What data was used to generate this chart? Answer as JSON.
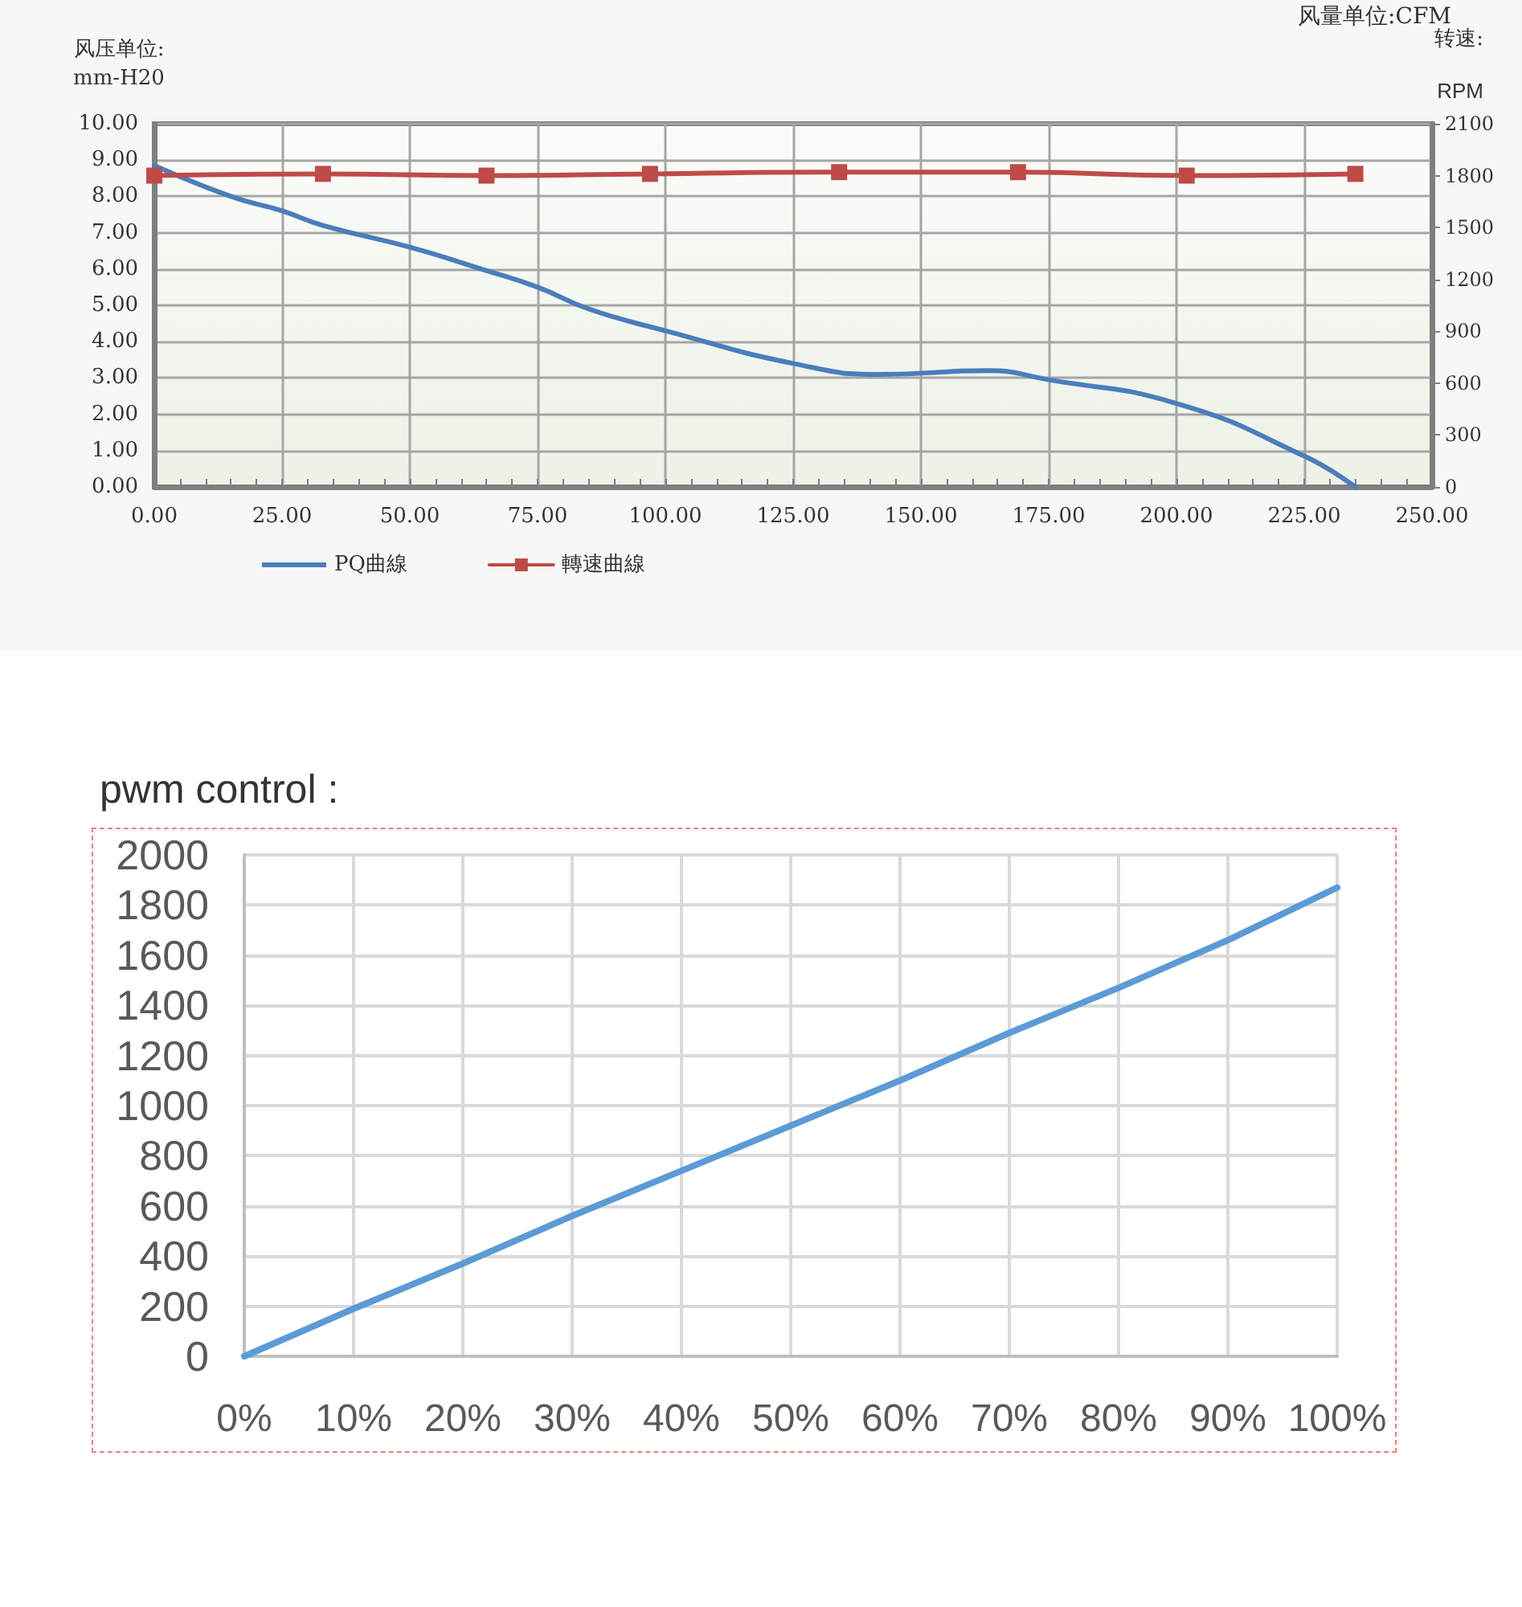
{
  "chart_data": [
    {
      "type": "line",
      "xlabel": "风量单位:CFM",
      "ylabel": "风压单位:\nmm-H20",
      "y2label": "转速:\nRPM",
      "xlim": [
        0,
        250
      ],
      "xticks": [
        {
          "value": 0,
          "label": "0.00"
        },
        {
          "value": 25,
          "label": "25.00"
        },
        {
          "value": 50,
          "label": "50.00"
        },
        {
          "value": 75,
          "label": "75.00"
        },
        {
          "value": 100,
          "label": "100.00"
        },
        {
          "value": 125,
          "label": "125.00"
        },
        {
          "value": 150,
          "label": "150.00"
        },
        {
          "value": 175,
          "label": "175.00"
        },
        {
          "value": 200,
          "label": "200.00"
        },
        {
          "value": 225,
          "label": "225.00"
        },
        {
          "value": 250,
          "label": "250.00"
        }
      ],
      "ylim": [
        0,
        10
      ],
      "yticks": [
        {
          "value": 0,
          "label": "0.00"
        },
        {
          "value": 1,
          "label": "1.00"
        },
        {
          "value": 2,
          "label": "2.00"
        },
        {
          "value": 3,
          "label": "3.00"
        },
        {
          "value": 4,
          "label": "4.00"
        },
        {
          "value": 5,
          "label": "5.00"
        },
        {
          "value": 6,
          "label": "6.00"
        },
        {
          "value": 7,
          "label": "7.00"
        },
        {
          "value": 8,
          "label": "8.00"
        },
        {
          "value": 9,
          "label": "9.00"
        },
        {
          "value": 10,
          "label": "10.00"
        }
      ],
      "y2lim": [
        0,
        2100
      ],
      "y2ticks": [
        0,
        300,
        600,
        900,
        1200,
        1500,
        1800,
        2100
      ],
      "grid": true,
      "legend": "bottom",
      "series": [
        {
          "name": "PQ曲線",
          "color": "#4a7ebb",
          "marker": "none",
          "x": [
            0,
            15,
            25,
            33,
            50,
            64,
            75,
            85,
            100,
            125,
            142,
            163,
            175,
            200,
            225,
            235
          ],
          "values": [
            8.85,
            8.0,
            7.6,
            7.2,
            6.6,
            6.0,
            5.5,
            4.9,
            4.3,
            3.4,
            3.1,
            3.2,
            2.95,
            2.3,
            0.85,
            0
          ]
        },
        {
          "name": "轉速曲線",
          "color": "#be4b48",
          "marker": "square",
          "axis": "y2",
          "x": [
            0,
            33,
            65,
            97,
            134,
            169,
            202,
            235
          ],
          "values": [
            1800,
            1810,
            1800,
            1810,
            1820,
            1820,
            1800,
            1810
          ]
        }
      ]
    },
    {
      "type": "line",
      "title": "pwm control :",
      "categories": [
        "0%",
        "10%",
        "20%",
        "30%",
        "40%",
        "50%",
        "60%",
        "70%",
        "80%",
        "90%",
        "100%"
      ],
      "values": [
        0,
        190,
        370,
        560,
        740,
        920,
        1100,
        1290,
        1470,
        1660,
        1870
      ],
      "color": "#5b9bd5",
      "marker": "none",
      "ylim": [
        0,
        2000
      ],
      "yticks": [
        0,
        200,
        400,
        600,
        800,
        1000,
        1200,
        1400,
        1600,
        1800,
        2000
      ],
      "grid": true
    }
  ]
}
